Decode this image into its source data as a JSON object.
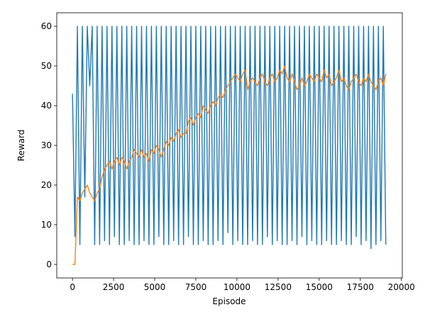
{
  "chart_data": {
    "type": "line",
    "xlabel": "Episode",
    "ylabel": "Reward",
    "xlim": [
      -955,
      20055
    ],
    "ylim": [
      -3.4,
      63.4
    ],
    "xticks": [
      0,
      2500,
      5000,
      7500,
      10000,
      12500,
      15000,
      17500,
      20000
    ],
    "yticks": [
      0,
      10,
      20,
      30,
      40,
      50,
      60
    ],
    "x": [
      0,
      150,
      300,
      450,
      600,
      750,
      900,
      1050,
      1200,
      1350,
      1500,
      1650,
      1800,
      1950,
      2100,
      2250,
      2400,
      2550,
      2700,
      2850,
      3000,
      3150,
      3300,
      3450,
      3600,
      3750,
      3900,
      4050,
      4200,
      4350,
      4500,
      4650,
      4800,
      4950,
      5100,
      5250,
      5400,
      5550,
      5700,
      5850,
      6000,
      6150,
      6300,
      6450,
      6600,
      6750,
      6900,
      7050,
      7200,
      7350,
      7500,
      7650,
      7800,
      7950,
      8100,
      8250,
      8400,
      8550,
      8700,
      8850,
      9000,
      9150,
      9300,
      9450,
      9600,
      9750,
      9900,
      10050,
      10200,
      10350,
      10500,
      10650,
      10800,
      10950,
      11100,
      11250,
      11400,
      11550,
      11700,
      11850,
      12000,
      12150,
      12300,
      12450,
      12600,
      12750,
      12900,
      13050,
      13200,
      13350,
      13500,
      13650,
      13800,
      13950,
      14100,
      14250,
      14400,
      14550,
      14700,
      14850,
      15000,
      15150,
      15300,
      15450,
      15600,
      15750,
      15900,
      16050,
      16200,
      16350,
      16500,
      16650,
      16800,
      16950,
      17100,
      17250,
      17400,
      17550,
      17700,
      17850,
      18000,
      18150,
      18300,
      18450,
      18600,
      18750,
      18900,
      19050
    ],
    "series": [
      {
        "color": "#1f77b4",
        "values": [
          43,
          7,
          60,
          5,
          60,
          17,
          60,
          45,
          60,
          5,
          60,
          5,
          60,
          6,
          60,
          5,
          60,
          7,
          60,
          5,
          60,
          5,
          60,
          6,
          60,
          5,
          60,
          5,
          60,
          6,
          60,
          5,
          60,
          5,
          60,
          7,
          60,
          5,
          60,
          5,
          60,
          6,
          60,
          5,
          60,
          5,
          60,
          7,
          60,
          5,
          60,
          5,
          60,
          6,
          60,
          5,
          60,
          5,
          60,
          6,
          60,
          5,
          60,
          8,
          60,
          5,
          60,
          6,
          60,
          5,
          60,
          5,
          60,
          6,
          60,
          5,
          60,
          5,
          60,
          7,
          60,
          5,
          60,
          6,
          60,
          5,
          60,
          5,
          60,
          6,
          60,
          5,
          60,
          7,
          60,
          5,
          60,
          6,
          60,
          5,
          60,
          5,
          60,
          6,
          60,
          5,
          60,
          5,
          60,
          6,
          60,
          5,
          60,
          5,
          60,
          7,
          60,
          5,
          60,
          6,
          60,
          4,
          60,
          5,
          60,
          6,
          60,
          5
        ]
      },
      {
        "color": "#ff7f0e",
        "values": [
          0,
          0,
          17,
          16,
          18,
          19,
          20,
          18,
          17,
          16,
          18,
          19,
          22,
          24,
          25,
          26,
          24,
          26,
          27,
          25,
          27,
          26,
          24,
          26,
          27,
          29,
          28,
          27,
          29,
          27,
          28,
          26,
          29,
          28,
          30,
          29,
          27,
          29,
          31,
          30,
          32,
          31,
          33,
          34,
          32,
          33,
          33,
          36,
          37,
          35,
          37,
          38,
          37,
          40,
          39,
          38,
          40,
          41,
          40,
          42,
          43,
          42,
          44,
          45,
          46,
          47,
          48,
          47,
          46,
          48,
          49,
          44,
          46,
          47,
          46,
          45,
          47,
          48,
          46,
          45,
          47,
          48,
          46,
          47,
          49,
          48,
          50,
          47,
          46,
          48,
          46,
          44,
          45,
          47,
          45,
          46,
          48,
          47,
          46,
          48,
          47,
          46,
          49,
          47,
          48,
          45,
          46,
          47,
          49,
          46,
          47,
          45,
          44,
          46,
          47,
          48,
          46,
          45,
          47,
          46,
          48,
          46,
          45,
          44,
          46,
          47,
          45,
          48
        ]
      }
    ]
  }
}
